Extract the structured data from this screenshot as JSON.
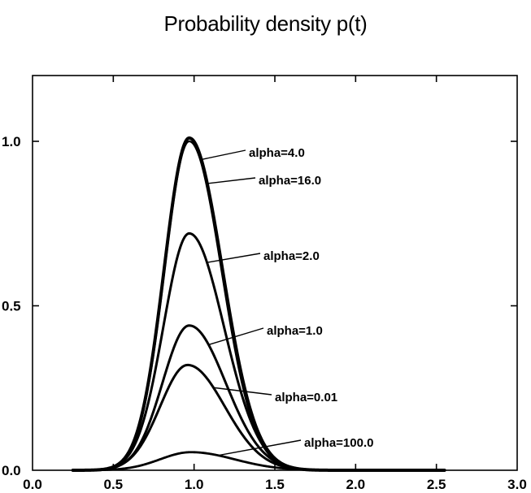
{
  "chart_data": {
    "type": "line",
    "title": "Probability density p(t)",
    "xlabel": "",
    "ylabel": "",
    "xlim": [
      0.0,
      3.0
    ],
    "ylim": [
      0.0,
      1.2
    ],
    "x_ticks": [
      "0.0",
      "0.5",
      "1.0",
      "1.5",
      "2.0",
      "2.5",
      "3.0"
    ],
    "y_ticks": [
      "0.0",
      "0.5",
      "1.0"
    ],
    "grid": false,
    "legend": "none",
    "annotations": [
      "alpha=4.0",
      "alpha=16.0",
      "alpha=2.0",
      "alpha=1.0",
      "alpha=0.01",
      "alpha=100.0"
    ],
    "series": [
      {
        "peak_x": 0.97,
        "peak_y": 1.01,
        "sigma_left": 0.155,
        "sigma_right": 0.205,
        "stroke": 4.0
      },
      {
        "peak_x": 0.97,
        "peak_y": 1.0,
        "sigma_left": 0.153,
        "sigma_right": 0.2,
        "stroke": 2.2
      },
      {
        "peak_x": 0.97,
        "peak_y": 0.72,
        "sigma_left": 0.16,
        "sigma_right": 0.215,
        "stroke": 3.0
      },
      {
        "peak_x": 0.97,
        "peak_y": 0.44,
        "sigma_left": 0.165,
        "sigma_right": 0.225,
        "stroke": 3.0
      },
      {
        "peak_x": 0.96,
        "peak_y": 0.32,
        "sigma_left": 0.17,
        "sigma_right": 0.23,
        "stroke": 3.0
      },
      {
        "peak_x": 0.98,
        "peak_y": 0.055,
        "sigma_left": 0.19,
        "sigma_right": 0.27,
        "stroke": 2.8
      }
    ]
  }
}
